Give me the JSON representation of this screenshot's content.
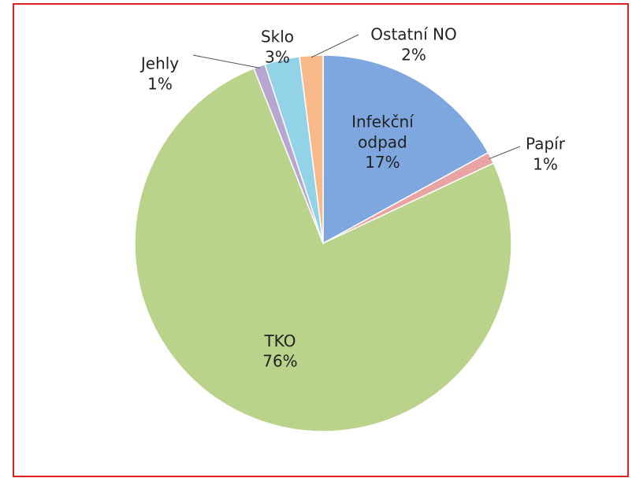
{
  "chart_data": {
    "type": "pie",
    "categories": [
      "Infekční odpad",
      "Papír",
      "TKO",
      "Jehly",
      "Sklo",
      "Ostatní NO"
    ],
    "values": [
      17,
      1,
      76,
      1,
      3,
      2
    ],
    "value_labels": [
      "17%",
      "1%",
      "76%",
      "1%",
      "3%",
      "2%"
    ],
    "colors": [
      "#7ea6df",
      "#e8a3a3",
      "#b9d38a",
      "#b7a6cf",
      "#92d3e8",
      "#f9b887"
    ]
  }
}
